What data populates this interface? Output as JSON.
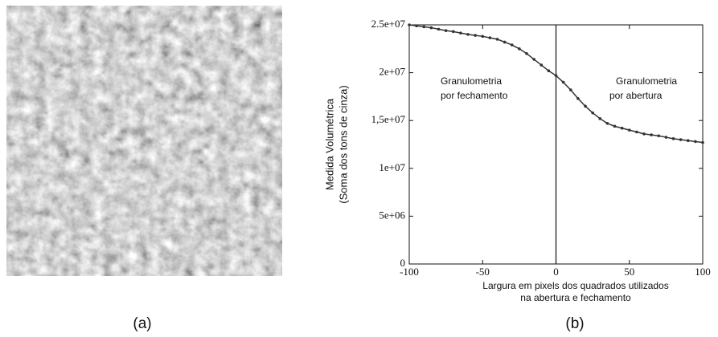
{
  "figure": {
    "captions": [
      "(a)",
      "(b)"
    ]
  },
  "chart_data": {
    "type": "line",
    "ylabel": [
      "Medida Volumétrica",
      "(Soma dos tons de cinza)"
    ],
    "xlabel": [
      "Largura em pixels dos quadrados utilizados",
      "na abertura e fechamento"
    ],
    "annotations": [
      [
        "Granulometria",
        "por fechamento"
      ],
      [
        "Granulometria",
        "por abertura"
      ]
    ],
    "vline": 0,
    "color": "#333333",
    "x": [
      -100,
      -95,
      -90,
      -85,
      -80,
      -75,
      -70,
      -65,
      -60,
      -55,
      -50,
      -45,
      -40,
      -35,
      -30,
      -25,
      -20,
      -15,
      -10,
      -5,
      0,
      5,
      10,
      15,
      20,
      25,
      30,
      35,
      40,
      45,
      50,
      55,
      60,
      65,
      70,
      75,
      80,
      85,
      90,
      95,
      100
    ],
    "values": [
      25000000,
      24900000,
      24800000,
      24700000,
      24550000,
      24400000,
      24300000,
      24150000,
      24000000,
      23900000,
      23800000,
      23650000,
      23500000,
      23200000,
      22900000,
      22500000,
      22000000,
      21400000,
      20800000,
      20200000,
      19700000,
      19000000,
      18200000,
      17300000,
      16500000,
      15800000,
      15200000,
      14700000,
      14400000,
      14200000,
      14000000,
      13800000,
      13600000,
      13500000,
      13400000,
      13250000,
      13100000,
      13000000,
      12900000,
      12800000,
      12700000
    ],
    "xlim": [
      -100,
      100
    ],
    "xticks": [
      -100,
      -50,
      0,
      50,
      100
    ],
    "ylim": [
      0,
      25000000
    ],
    "yticks": [
      0,
      {
        "value": 5000000,
        "label": "5e+06"
      },
      {
        "value": 10000000,
        "label": "1e+07"
      },
      {
        "value": 15000000,
        "label": "1,5e+07"
      },
      {
        "value": 20000000,
        "label": "2e+07"
      },
      {
        "value": 25000000,
        "label": "2.5e+07"
      }
    ]
  }
}
